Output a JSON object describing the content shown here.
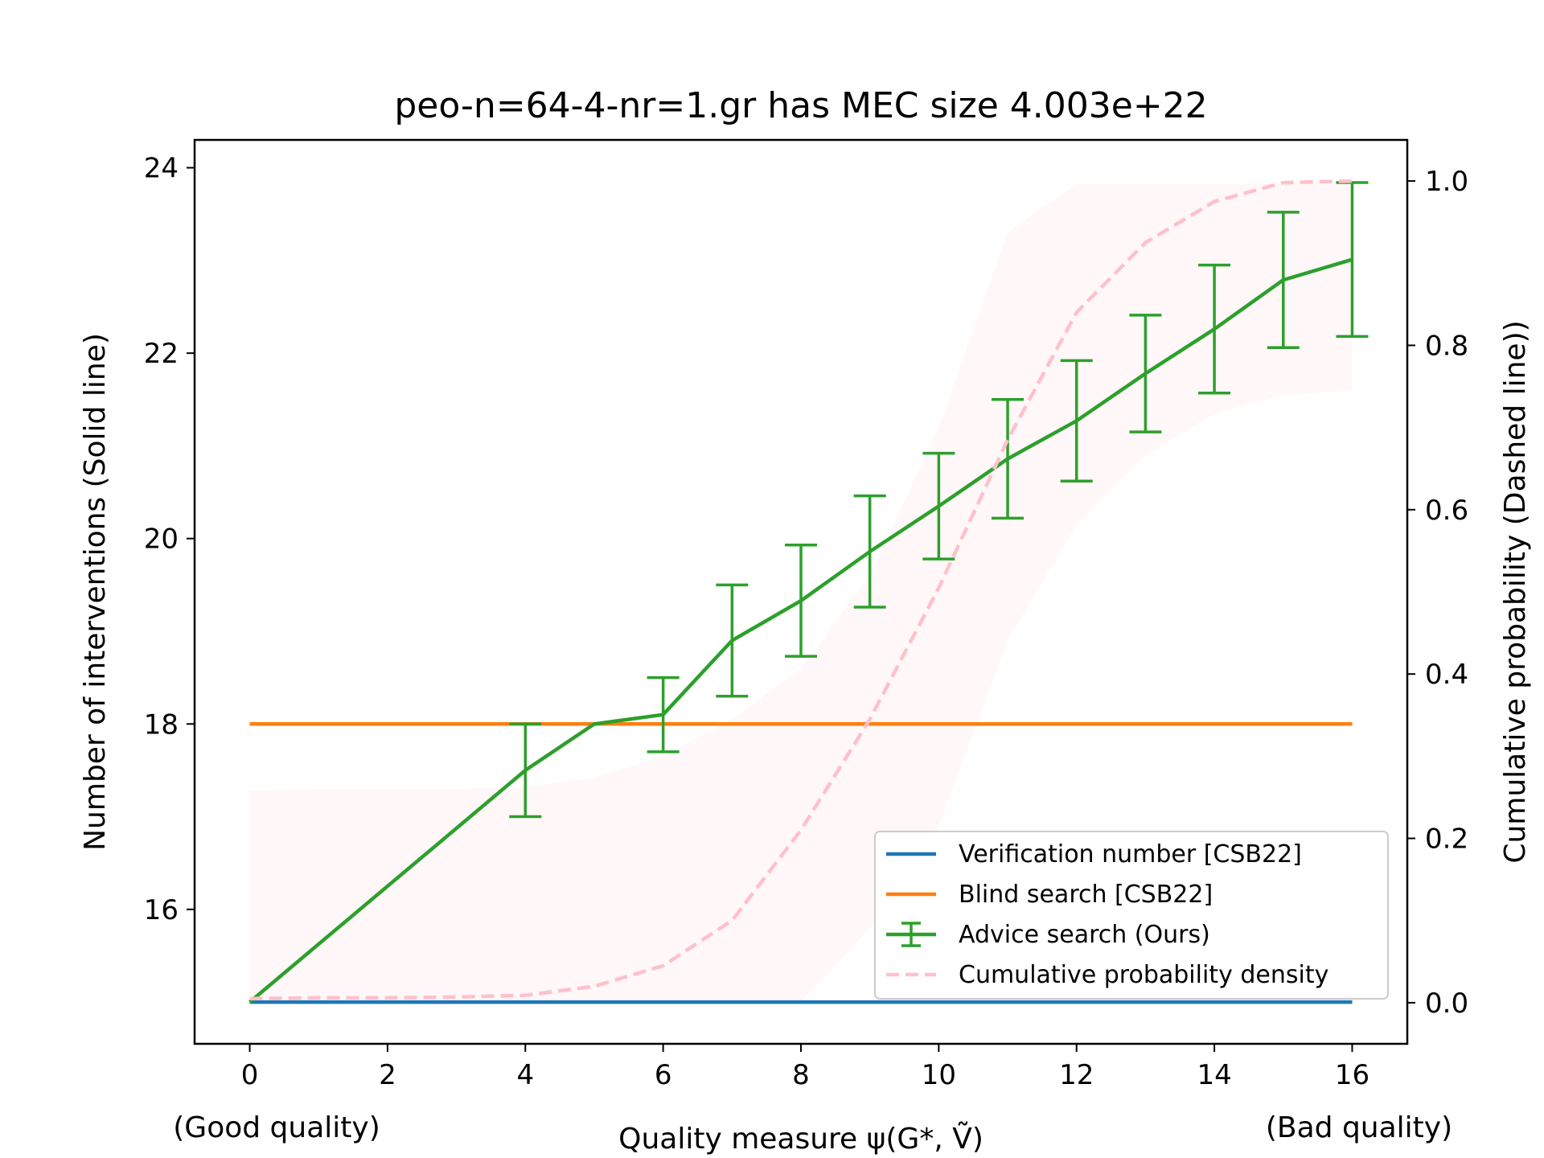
{
  "chart_data": {
    "type": "line",
    "title": "peo-n=64-4-nr=1.gr has MEC size 4.003e+22",
    "xlabel": "Quality measure ψ(G*, Ṽ)",
    "x_note_left": "(Good quality)",
    "x_note_right": "(Bad quality)",
    "ylabel_left": "Number of interventions (Solid line)",
    "ylabel_right": "Cumulative probability (Dashed line))",
    "xlim": [
      -0.8,
      16.8
    ],
    "ylim_left": [
      14.55,
      24.3
    ],
    "ylim_right": [
      -0.05,
      1.05
    ],
    "x_ticks": [
      0,
      2,
      4,
      6,
      8,
      10,
      12,
      14,
      16
    ],
    "y_ticks_left": [
      16,
      18,
      20,
      22,
      24
    ],
    "y_ticks_right": [
      0.0,
      0.2,
      0.4,
      0.6,
      0.8,
      1.0
    ],
    "x_tick_labels": [
      "0",
      "2",
      "4",
      "6",
      "8",
      "10",
      "12",
      "14",
      "16"
    ],
    "y_tick_labels_left": [
      "16",
      "18",
      "20",
      "22",
      "24"
    ],
    "y_tick_labels_right": [
      "0.0",
      "0.2",
      "0.4",
      "0.6",
      "0.8",
      "1.0"
    ],
    "legend_position": "lower right",
    "series": [
      {
        "name": "Verification number [CSB22]",
        "color": "#1f77b4",
        "style": "solid",
        "axis": "left",
        "x": [
          0,
          16
        ],
        "y": [
          15,
          15
        ]
      },
      {
        "name": "Blind search [CSB22]",
        "color": "#ff7f0e",
        "style": "solid",
        "axis": "left",
        "x": [
          0,
          16
        ],
        "y": [
          18,
          18
        ]
      },
      {
        "name": "Advice search (Ours)",
        "color": "#2ca02c",
        "style": "solid-errorbar",
        "axis": "left",
        "x": [
          0,
          4,
          5,
          6,
          7,
          8,
          9,
          10,
          11,
          12,
          13,
          14,
          15,
          16
        ],
        "y": [
          15.0,
          17.5,
          18.0,
          18.1,
          18.9,
          19.33,
          19.86,
          20.35,
          20.86,
          21.27,
          21.78,
          22.26,
          22.79,
          23.01
        ],
        "err": [
          0,
          0.5,
          0,
          0.4,
          0.6,
          0.6,
          0.6,
          0.57,
          0.64,
          0.65,
          0.63,
          0.69,
          0.73,
          0.83
        ]
      },
      {
        "name": "Cumulative probability density",
        "color": "#ffc0cb",
        "style": "dashed",
        "axis": "right",
        "x": [
          0,
          1,
          2,
          3,
          4,
          5,
          6,
          7,
          8,
          9,
          10,
          11,
          12,
          13,
          14,
          15,
          16
        ],
        "y": [
          0.005,
          0.006,
          0.006,
          0.007,
          0.009,
          0.02,
          0.045,
          0.1,
          0.21,
          0.345,
          0.505,
          0.685,
          0.84,
          0.925,
          0.975,
          0.998,
          1.0
        ]
      }
    ],
    "band": {
      "color": "#ffc0cb",
      "axis": "left",
      "x": [
        0,
        1,
        2,
        3,
        4,
        5,
        6,
        7,
        8,
        9,
        10,
        11,
        12,
        13,
        14,
        15,
        16
      ],
      "lower": [
        15.0,
        15.0,
        15.0,
        15.0,
        15.0,
        15.0,
        15.0,
        15.0,
        15.0,
        15.8,
        16.9,
        18.9,
        20.15,
        20.9,
        21.35,
        21.55,
        21.6
      ],
      "upper": [
        17.28,
        17.3,
        17.3,
        17.3,
        17.32,
        17.42,
        17.65,
        18.05,
        18.6,
        19.6,
        21.2,
        23.3,
        23.83,
        23.83,
        23.83,
        23.83,
        23.83
      ]
    }
  }
}
